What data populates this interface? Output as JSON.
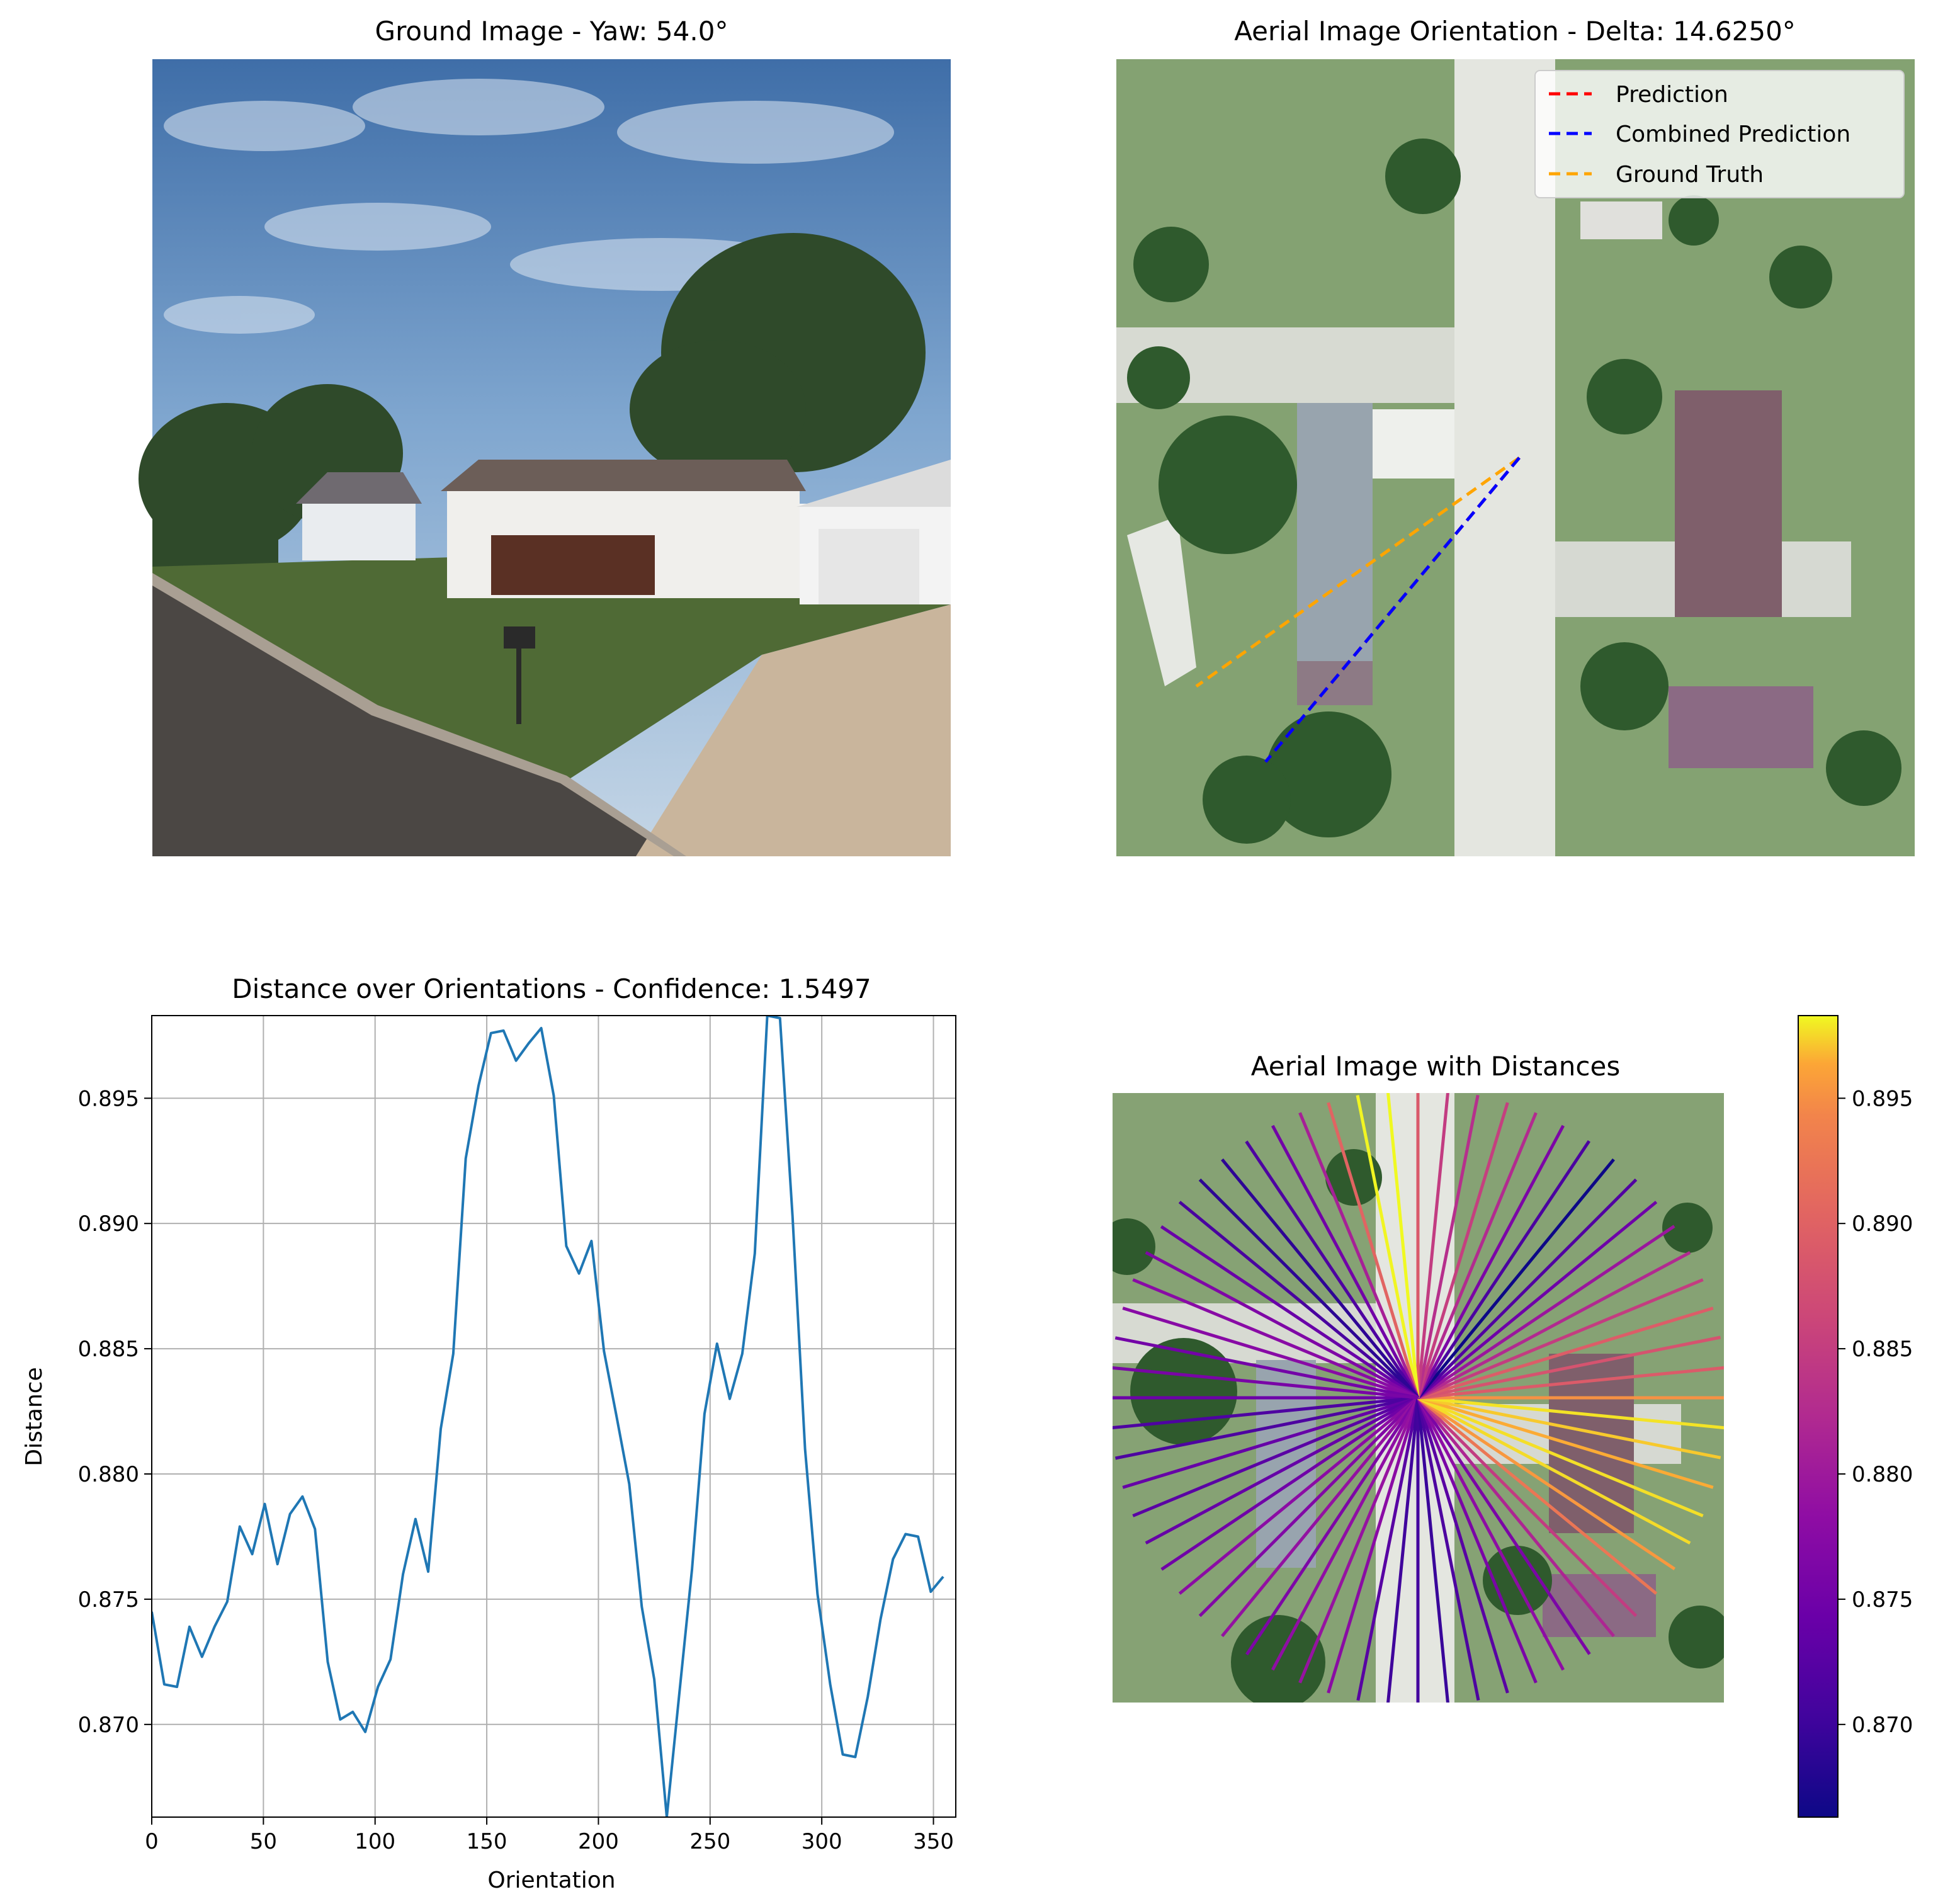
{
  "panels": {
    "ground": {
      "title": "Ground Image - Yaw: 54.0°"
    },
    "aerial": {
      "title": "Aerial Image Orientation - Delta: 14.6250°",
      "legend": [
        {
          "label": "Prediction",
          "color": "#ff0000"
        },
        {
          "label": "Combined Prediction",
          "color": "#0000ff"
        },
        {
          "label": "Ground Truth",
          "color": "#ffa500"
        }
      ]
    },
    "polar": {
      "title": "Aerial Image with Distances"
    }
  },
  "chart_data": [
    {
      "type": "line",
      "title": "Distance over Orientations - Confidence: 1.5497",
      "xlabel": "Orientation",
      "ylabel": "Distance",
      "xlim": [
        0,
        360
      ],
      "ylim": [
        0.8663,
        0.8983
      ],
      "grid": true,
      "xticks": [
        0,
        50,
        100,
        150,
        200,
        250,
        300,
        350
      ],
      "yticks": [
        0.87,
        0.875,
        0.88,
        0.885,
        0.89,
        0.895
      ],
      "ytick_labels": [
        "0.870",
        "0.875",
        "0.880",
        "0.885",
        "0.890",
        "0.895"
      ],
      "series_color": "#1f77b4",
      "x": [
        0,
        5.6,
        11.3,
        16.9,
        22.5,
        28.1,
        33.8,
        39.4,
        45,
        50.6,
        56.3,
        61.9,
        67.5,
        73.1,
        78.8,
        84.4,
        90,
        95.6,
        101.3,
        106.9,
        112.5,
        118.1,
        123.8,
        129.4,
        135,
        140.6,
        146.3,
        151.9,
        157.5,
        163.1,
        168.8,
        174.4,
        180,
        185.6,
        191.3,
        196.9,
        202.5,
        208.1,
        213.8,
        219.4,
        225,
        230.6,
        236.3,
        241.9,
        247.5,
        253.1,
        258.8,
        264.4,
        270,
        275.6,
        281.3,
        286.9,
        292.5,
        298.1,
        303.8,
        309.4,
        315,
        320.6,
        326.3,
        331.9,
        337.5,
        343.1,
        348.8,
        354.4
      ],
      "y": [
        0.8745,
        0.8716,
        0.8715,
        0.8739,
        0.8727,
        0.8739,
        0.8749,
        0.8779,
        0.8768,
        0.8788,
        0.8764,
        0.8784,
        0.8791,
        0.8778,
        0.8725,
        0.8702,
        0.8705,
        0.8697,
        0.8715,
        0.8726,
        0.876,
        0.8782,
        0.8761,
        0.8818,
        0.8848,
        0.8926,
        0.8955,
        0.8976,
        0.8977,
        0.8965,
        0.8972,
        0.8978,
        0.8951,
        0.8891,
        0.888,
        0.8893,
        0.8849,
        0.8823,
        0.8796,
        0.8747,
        0.8718,
        0.8663,
        0.8713,
        0.8762,
        0.8824,
        0.8852,
        0.883,
        0.8848,
        0.8888,
        0.8983,
        0.8982,
        0.8903,
        0.881,
        0.8752,
        0.8716,
        0.8688,
        0.8687,
        0.8711,
        0.8742,
        0.8766,
        0.8776,
        0.8775,
        0.8753,
        0.8759
      ]
    },
    {
      "type": "heatmap",
      "title": "Aerial Image with Distances",
      "colormap": "plasma",
      "clim": [
        0.8663,
        0.8983
      ],
      "colorbar_ticks": [
        0.87,
        0.875,
        0.88,
        0.885,
        0.89,
        0.895
      ],
      "colorbar_tick_labels": [
        "0.870",
        "0.875",
        "0.880",
        "0.885",
        "0.890",
        "0.895"
      ]
    }
  ]
}
